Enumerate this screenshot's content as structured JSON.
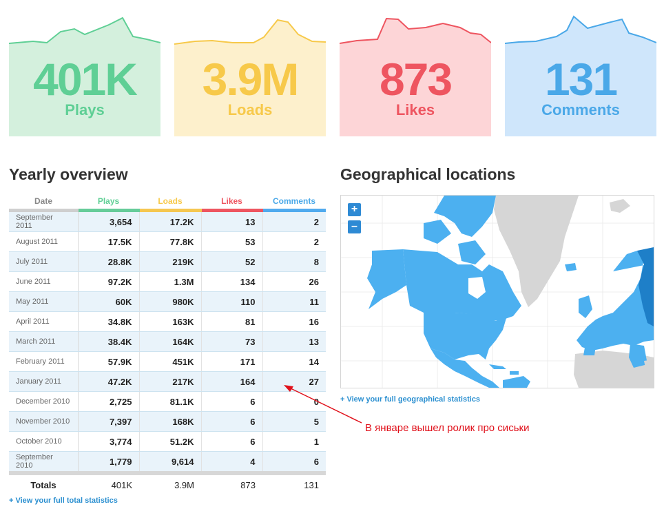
{
  "stats": [
    {
      "value": "401K",
      "label": "Plays",
      "color": "#5fcf95",
      "bg": "#d4f0dd"
    },
    {
      "value": "3.9M",
      "label": "Loads",
      "color": "#f7c94a",
      "bg": "#fdf0cc"
    },
    {
      "value": "873",
      "label": "Likes",
      "color": "#ee5560",
      "bg": "#fdd5d7"
    },
    {
      "value": "131",
      "label": "Comments",
      "color": "#4aa8e8",
      "bg": "#cfe6fb"
    }
  ],
  "yearly": {
    "title": "Yearly overview",
    "columns": [
      "Date",
      "Plays",
      "Loads",
      "Likes",
      "Comments"
    ],
    "rows": [
      {
        "date": "September 2011",
        "plays": "3,654",
        "loads": "17.2K",
        "likes": "13",
        "comments": "2"
      },
      {
        "date": "August 2011",
        "plays": "17.5K",
        "loads": "77.8K",
        "likes": "53",
        "comments": "2"
      },
      {
        "date": "July 2011",
        "plays": "28.8K",
        "loads": "219K",
        "likes": "52",
        "comments": "8"
      },
      {
        "date": "June 2011",
        "plays": "97.2K",
        "loads": "1.3M",
        "likes": "134",
        "comments": "26"
      },
      {
        "date": "May 2011",
        "plays": "60K",
        "loads": "980K",
        "likes": "110",
        "comments": "11"
      },
      {
        "date": "April 2011",
        "plays": "34.8K",
        "loads": "163K",
        "likes": "81",
        "comments": "16"
      },
      {
        "date": "March 2011",
        "plays": "38.4K",
        "loads": "164K",
        "likes": "73",
        "comments": "13"
      },
      {
        "date": "February 2011",
        "plays": "57.9K",
        "loads": "451K",
        "likes": "171",
        "comments": "14"
      },
      {
        "date": "January 2011",
        "plays": "47.2K",
        "loads": "217K",
        "likes": "164",
        "comments": "27"
      },
      {
        "date": "December 2010",
        "plays": "2,725",
        "loads": "81.1K",
        "likes": "6",
        "comments": "0"
      },
      {
        "date": "November 2010",
        "plays": "7,397",
        "loads": "168K",
        "likes": "6",
        "comments": "5"
      },
      {
        "date": "October 2010",
        "plays": "3,774",
        "loads": "51.2K",
        "likes": "6",
        "comments": "1"
      },
      {
        "date": "September 2010",
        "plays": "1,779",
        "loads": "9,614",
        "likes": "4",
        "comments": "6"
      }
    ],
    "totals": {
      "label": "Totals",
      "plays": "401K",
      "loads": "3.9M",
      "likes": "873",
      "comments": "131"
    },
    "link": "+ View your full total statistics"
  },
  "geo": {
    "title": "Geographical locations",
    "zoom_in": "+",
    "zoom_out": "–",
    "link": "+ View your full geographical statistics",
    "land_color": "#4cb0f0",
    "dark_color": "#1e7fc8",
    "gray_color": "#d6d6d6"
  },
  "annotation": "В январе вышел ролик про сиськи"
}
